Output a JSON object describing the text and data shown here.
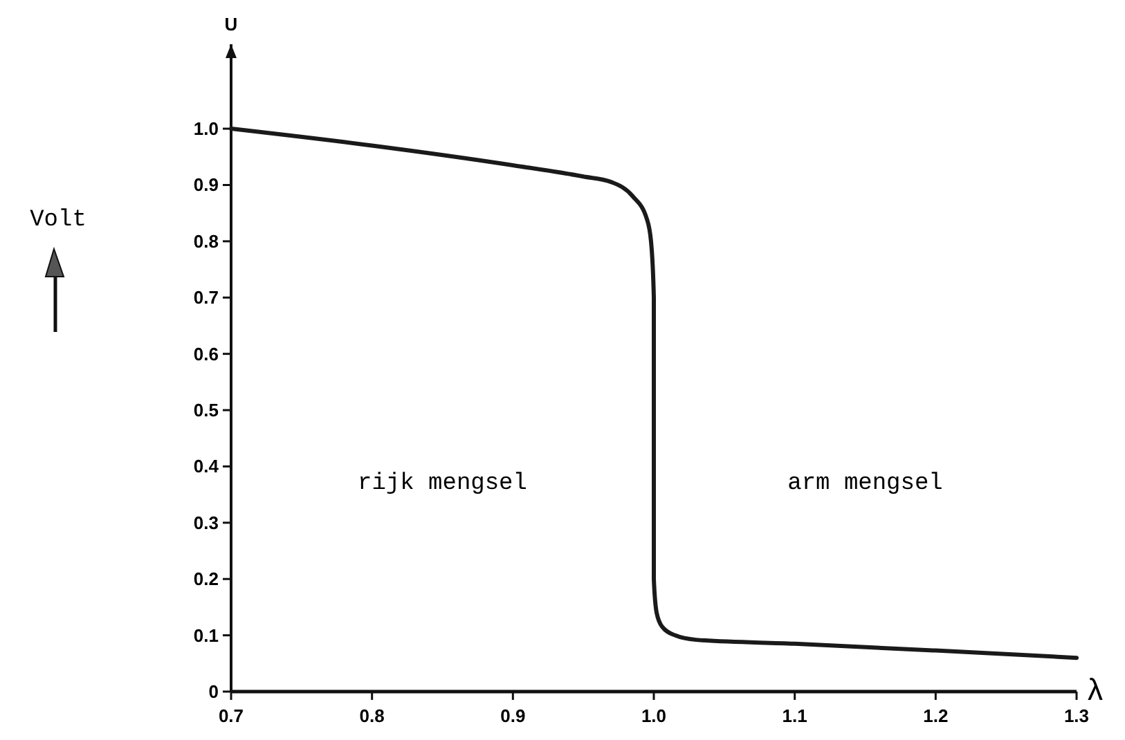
{
  "chart_data": {
    "type": "line",
    "xlabel": "λ",
    "ylabel": "U",
    "annotations": [
      "Volt",
      "rijk mengsel",
      "arm mengsel"
    ],
    "x": [
      0.7,
      0.8,
      0.9,
      0.95,
      0.97,
      0.985,
      0.995,
      0.998,
      1.0,
      1.0,
      1.002,
      1.006,
      1.015,
      1.03,
      1.1,
      1.2,
      1.3
    ],
    "series": [
      {
        "color": "#1a1a1a",
        "values": [
          1.0,
          0.97,
          0.935,
          0.915,
          0.905,
          0.88,
          0.84,
          0.8,
          0.7,
          0.2,
          0.14,
          0.115,
          0.1,
          0.092,
          0.085,
          0.073,
          0.06
        ]
      }
    ],
    "xlim": [
      0.7,
      1.3
    ],
    "ylim": [
      0,
      1.15
    ],
    "xticks": [
      0.7,
      0.8,
      0.9,
      {
        "value": 1,
        "label": "1.0"
      },
      1.1,
      1.2,
      1.3
    ],
    "yticks": [
      0,
      0.1,
      0.2,
      0.3,
      0.4,
      0.5,
      0.6,
      0.7,
      0.8,
      0.9,
      {
        "value": 1,
        "label": "1.0"
      }
    ],
    "marker": "none",
    "line_style": "solid"
  }
}
